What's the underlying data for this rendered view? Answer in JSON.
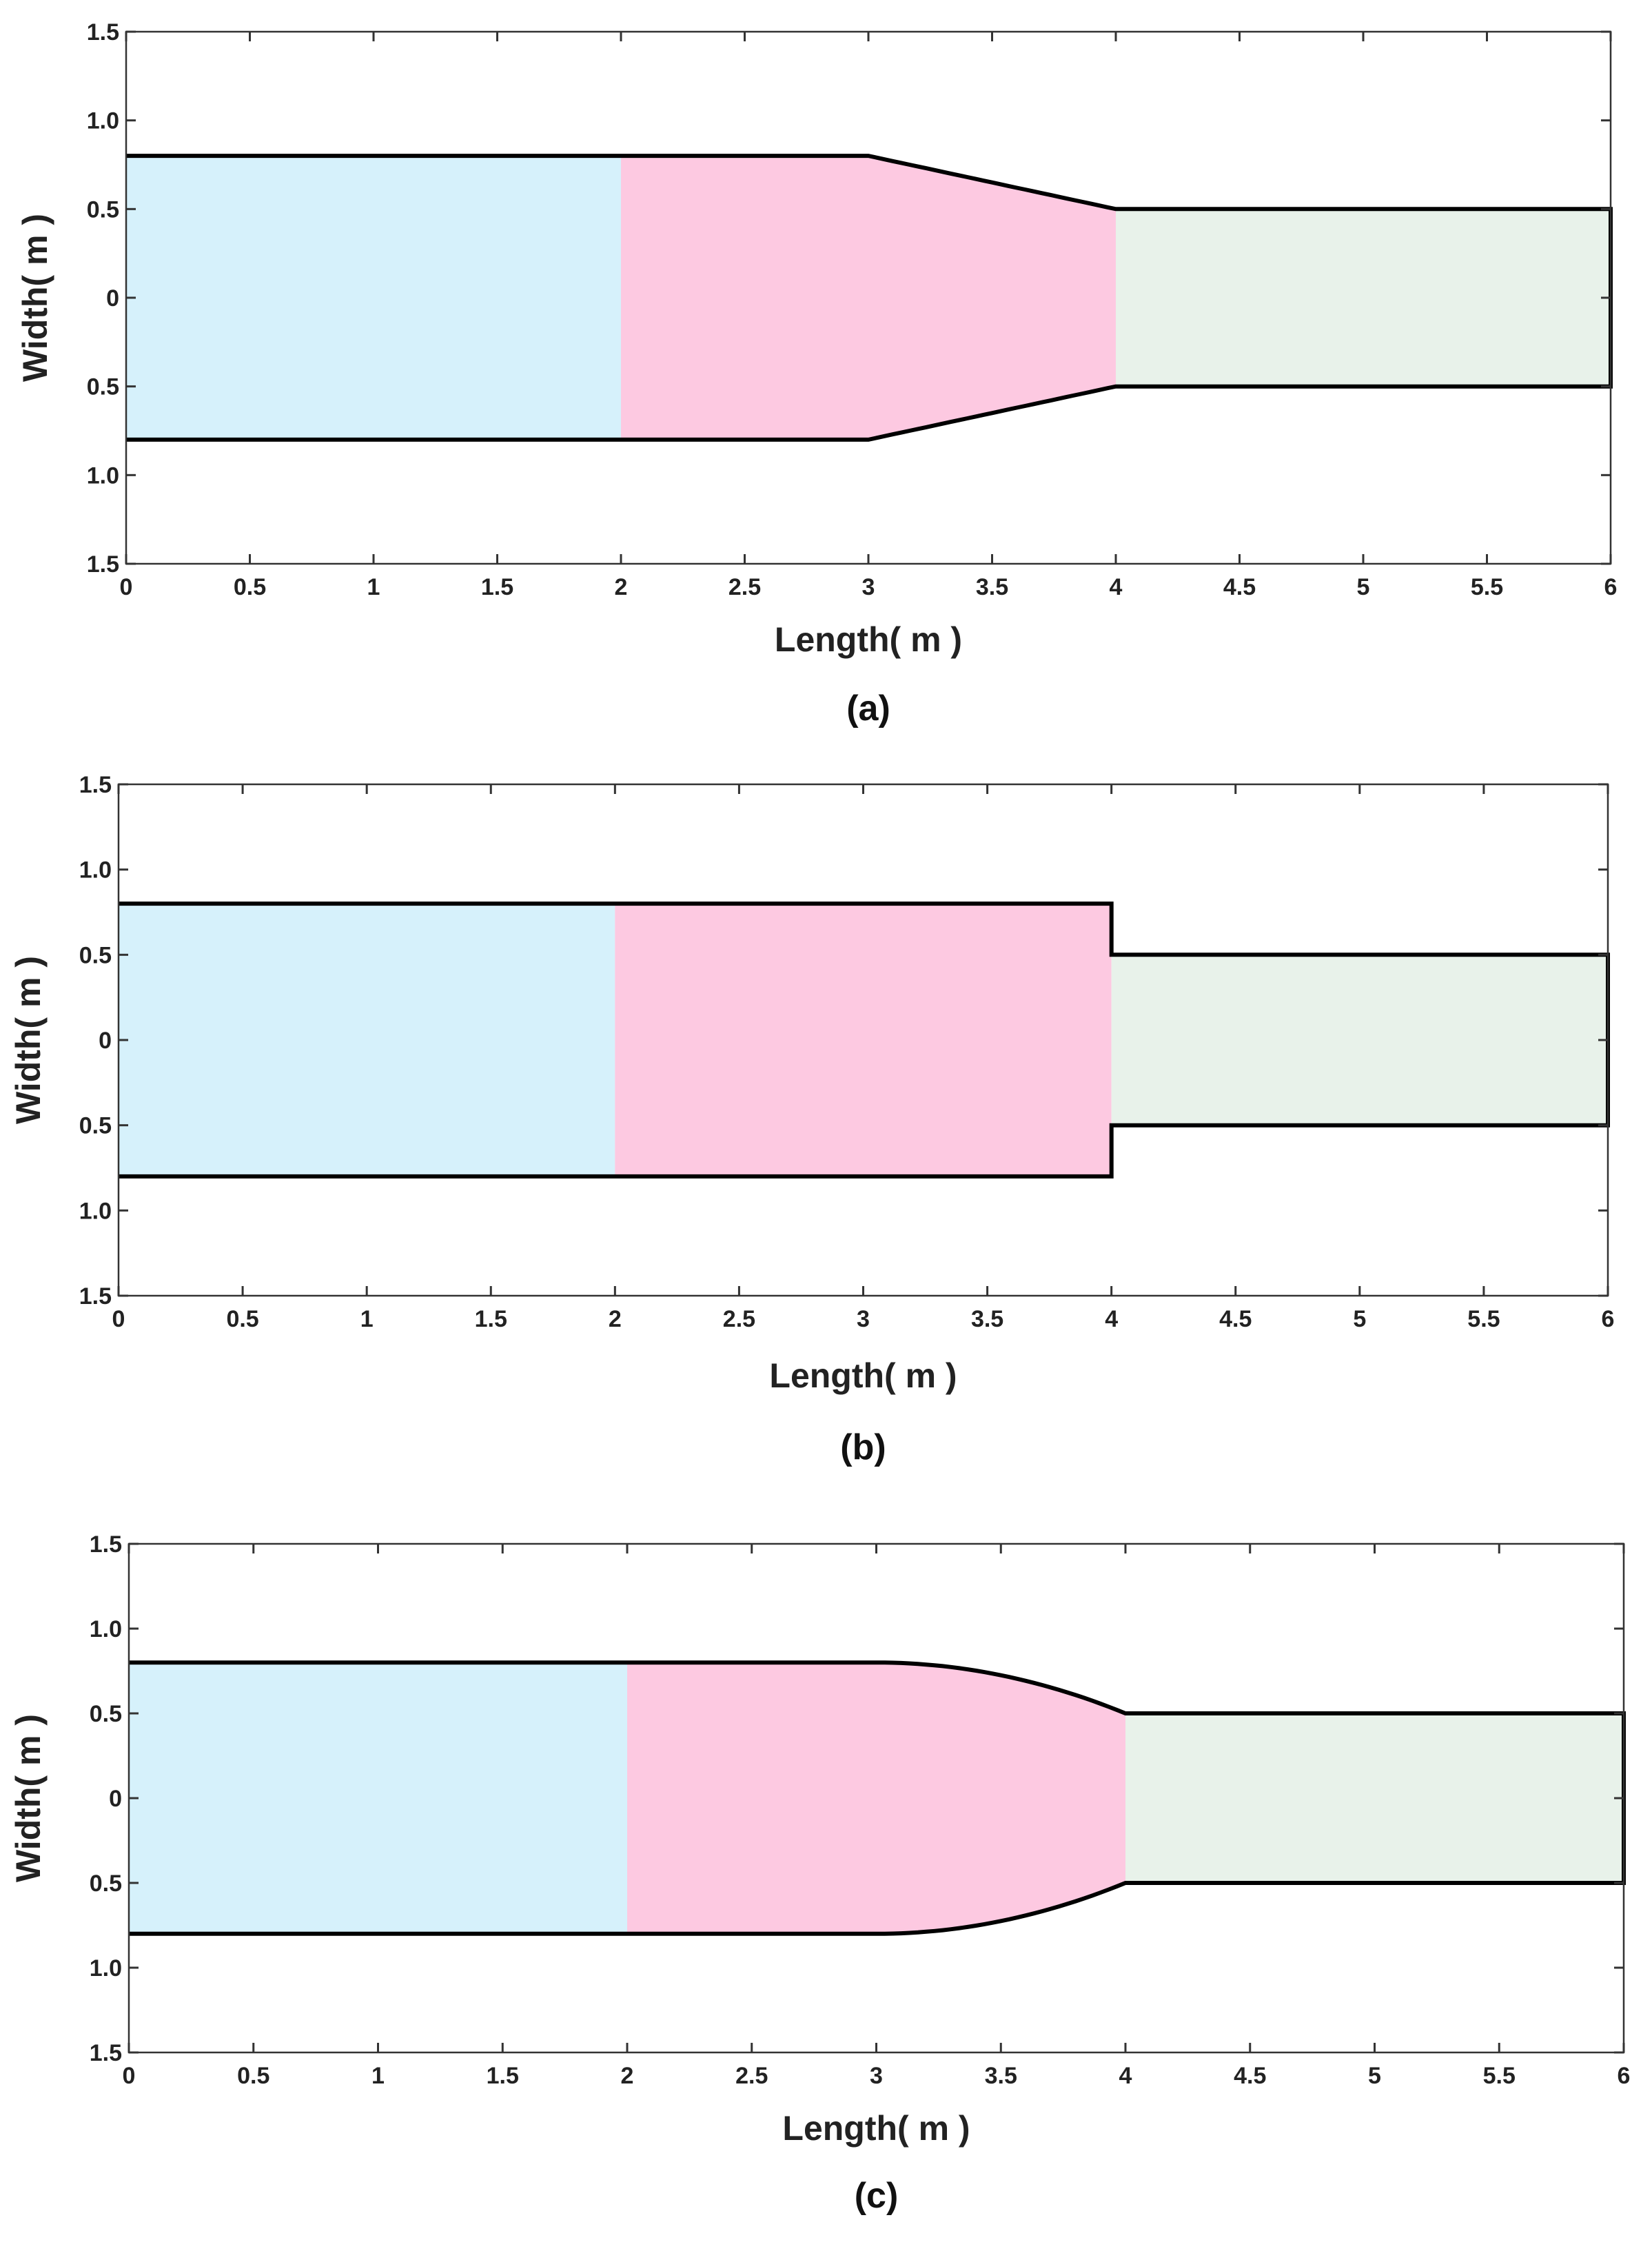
{
  "chart_data": [
    {
      "type": "area",
      "panel_label": "(a)",
      "xlabel": "Length( m )",
      "ylabel": "Width( m )",
      "xlim": [
        0,
        6
      ],
      "ylim": [
        -1.5,
        1.5
      ],
      "x_ticks": [
        0,
        0.5,
        1,
        1.5,
        2,
        2.5,
        3,
        3.5,
        4,
        4.5,
        5,
        5.5,
        6
      ],
      "x_tick_labels": [
        "0",
        "0.5",
        "1",
        "1.5",
        "2",
        "2.5",
        "3",
        "3.5",
        "4",
        "4.5",
        "5",
        "5.5",
        "6"
      ],
      "y_ticks": [
        1.5,
        1.0,
        0.5,
        0,
        -0.5,
        -1.0,
        -1.5
      ],
      "y_tick_labels": [
        "1.5",
        "1.0",
        "0.5",
        "0",
        "0.5",
        "1.0",
        "1.5"
      ],
      "grid": false,
      "regions": [
        {
          "color": "#d6f1fb",
          "x": [
            0,
            2
          ],
          "half_width": [
            0.8,
            0.8
          ],
          "transition": "straight"
        },
        {
          "color": "#fdc9e1",
          "x": [
            2,
            4
          ],
          "half_width": [
            0.8,
            0.5
          ],
          "transition": "linear",
          "taper_start": 3
        },
        {
          "color": "#e8f2ea",
          "x": [
            4,
            6
          ],
          "half_width": [
            0.5,
            0.5
          ],
          "transition": "straight"
        }
      ]
    },
    {
      "type": "area",
      "panel_label": "(b)",
      "xlabel": "Length( m )",
      "ylabel": "Width( m )",
      "xlim": [
        0,
        6
      ],
      "ylim": [
        -1.5,
        1.5
      ],
      "x_ticks": [
        0,
        0.5,
        1,
        1.5,
        2,
        2.5,
        3,
        3.5,
        4,
        4.5,
        5,
        5.5,
        6
      ],
      "x_tick_labels": [
        "0",
        "0.5",
        "1",
        "1.5",
        "2",
        "2.5",
        "3",
        "3.5",
        "4",
        "4.5",
        "5",
        "5.5",
        "6"
      ],
      "y_ticks": [
        1.5,
        1.0,
        0.5,
        0,
        -0.5,
        -1.0,
        -1.5
      ],
      "y_tick_labels": [
        "1.5",
        "1.0",
        "0.5",
        "0",
        "0.5",
        "1.0",
        "1.5"
      ],
      "grid": false,
      "regions": [
        {
          "color": "#d6f1fb",
          "x": [
            0,
            2
          ],
          "half_width": [
            0.8,
            0.8
          ],
          "transition": "straight"
        },
        {
          "color": "#fdc9e1",
          "x": [
            2,
            4
          ],
          "half_width": [
            0.8,
            0.8
          ],
          "transition": "straight"
        },
        {
          "color": "#e8f2ea",
          "x": [
            4,
            6
          ],
          "half_width": [
            0.5,
            0.5
          ],
          "transition": "step"
        }
      ]
    },
    {
      "type": "area",
      "panel_label": "(c)",
      "xlabel": "Length( m )",
      "ylabel": "Width( m )",
      "xlim": [
        0,
        6
      ],
      "ylim": [
        -1.5,
        1.5
      ],
      "x_ticks": [
        0,
        0.5,
        1,
        1.5,
        2,
        2.5,
        3,
        3.5,
        4,
        4.5,
        5,
        5.5,
        6
      ],
      "x_tick_labels": [
        "0",
        "0.5",
        "1",
        "1.5",
        "2",
        "2.5",
        "3",
        "3.5",
        "4",
        "4.5",
        "5",
        "5.5",
        "6"
      ],
      "y_ticks": [
        1.5,
        1.0,
        0.5,
        0,
        -0.5,
        -1.0,
        -1.5
      ],
      "y_tick_labels": [
        "1.5",
        "1.0",
        "0.5",
        "0",
        "0.5",
        "1.0",
        "1.5"
      ],
      "grid": false,
      "regions": [
        {
          "color": "#d6f1fb",
          "x": [
            0,
            2
          ],
          "half_width": [
            0.8,
            0.8
          ],
          "transition": "straight"
        },
        {
          "color": "#fdc9e1",
          "x": [
            2,
            4
          ],
          "half_width": [
            0.8,
            0.5
          ],
          "transition": "curved",
          "taper_start": 3
        },
        {
          "color": "#e8f2ea",
          "x": [
            4,
            6
          ],
          "half_width": [
            0.5,
            0.5
          ],
          "transition": "straight"
        }
      ]
    }
  ]
}
